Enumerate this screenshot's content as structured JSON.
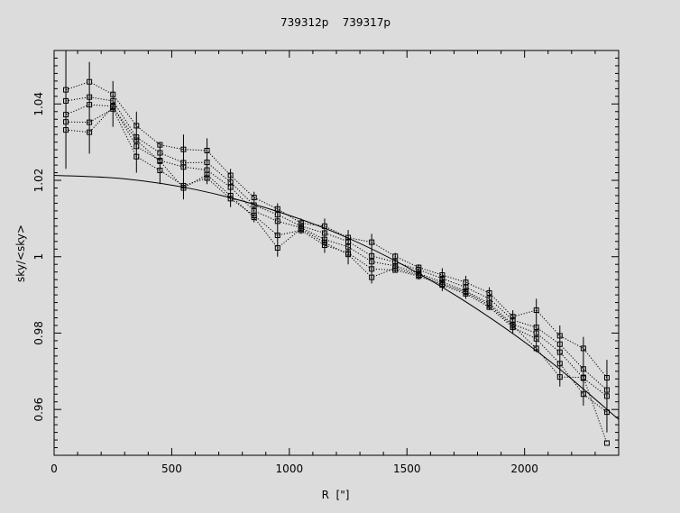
{
  "chart_data": {
    "type": "scatter",
    "title": "739312p    739317p",
    "xlabel": "R  [\"]",
    "ylabel": "sky/<sky>",
    "xlim": [
      0,
      2400
    ],
    "ylim": [
      0.948,
      1.054
    ],
    "x_ticks": [
      0,
      500,
      1000,
      1500,
      2000
    ],
    "y_ticks": [
      0.96,
      0.98,
      1,
      1.02,
      1.04
    ],
    "y_tick_labels": [
      "0.96",
      "0.98",
      "1",
      "1.02",
      "1.04"
    ],
    "grid": false,
    "x": [
      50,
      150,
      250,
      350,
      450,
      550,
      650,
      750,
      850,
      950,
      1050,
      1150,
      1250,
      1350,
      1450,
      1550,
      1650,
      1750,
      1850,
      1950,
      2050,
      2150,
      2250,
      2350
    ],
    "series": [
      {
        "values": [
          1.0437,
          1.0458,
          1.0425,
          1.0343,
          1.0293,
          1.0281,
          1.0278,
          1.0213,
          1.0155,
          1.0125,
          1.0088,
          1.008,
          1.005,
          1.0038,
          1.0001,
          0.9972,
          0.9952,
          0.9933,
          0.9905,
          0.9843,
          0.986,
          0.9793,
          0.976,
          0.9683
        ]
      },
      {
        "values": [
          1.0408,
          1.0418,
          1.0408,
          1.0313,
          1.0272,
          1.0246,
          1.0247,
          1.0195,
          1.0135,
          1.011,
          1.008,
          1.0062,
          1.004,
          1.0002,
          0.9986,
          0.9966,
          0.9943,
          0.992,
          0.989,
          0.9834,
          0.9815,
          0.9771,
          0.9706,
          0.9651
        ]
      },
      {
        "values": [
          1.0372,
          1.0398,
          1.0394,
          1.0289,
          1.0252,
          1.0235,
          1.0227,
          1.0182,
          1.012,
          1.0093,
          1.0076,
          1.0045,
          1.0026,
          0.9987,
          0.9976,
          0.9956,
          0.9934,
          0.991,
          0.9878,
          0.9823,
          0.98,
          0.975,
          0.9682,
          0.9635
        ]
      },
      {
        "values": [
          1.0353,
          1.0352,
          1.0387,
          1.0262,
          1.0226,
          1.0186,
          1.0206,
          1.0152,
          1.0108,
          1.0056,
          1.0069,
          1.003,
          1.001,
          0.9968,
          0.9965,
          0.9949,
          0.9926,
          0.9903,
          0.9868,
          0.9815,
          0.9785,
          0.972,
          0.964,
          0.9593
        ]
      },
      {
        "values": [
          1.0332,
          1.0326,
          1.0392,
          1.0305,
          1.025,
          1.018,
          1.0215,
          1.016,
          1.0103,
          1.0023,
          1.0073,
          1.0037,
          1.0006,
          0.9946,
          0.997,
          0.9952,
          0.9929,
          0.9907,
          0.9873,
          0.9819,
          0.976,
          0.9685,
          0.9684,
          0.9512
        ]
      }
    ],
    "error_bars": [
      [
        1.023,
        1.054
      ],
      [
        1.027,
        1.051
      ],
      [
        1.034,
        1.046
      ],
      [
        1.022,
        1.038
      ],
      [
        1.019,
        1.03
      ],
      [
        1.015,
        1.032
      ],
      [
        1.019,
        1.031
      ],
      [
        1.013,
        1.023
      ],
      [
        1.009,
        1.017
      ],
      [
        1.0,
        1.014
      ],
      [
        1.006,
        1.01
      ],
      [
        1.001,
        1.01
      ],
      [
        0.998,
        1.007
      ],
      [
        0.993,
        1.006
      ],
      [
        0.996,
        1.001
      ],
      [
        0.994,
        0.998
      ],
      [
        0.991,
        0.997
      ],
      [
        0.989,
        0.995
      ],
      [
        0.986,
        0.992
      ],
      [
        0.98,
        0.986
      ],
      [
        0.975,
        0.989
      ],
      [
        0.966,
        0.982
      ],
      [
        0.961,
        0.979
      ],
      [
        0.954,
        0.973
      ]
    ],
    "model_curve": {
      "x": [
        0,
        300,
        600,
        900,
        1200,
        1500,
        1800,
        2100,
        2400
      ],
      "y": [
        1.0213,
        1.0204,
        1.0176,
        1.0128,
        1.0062,
        0.9973,
        0.9862,
        0.973,
        0.9574
      ]
    }
  }
}
